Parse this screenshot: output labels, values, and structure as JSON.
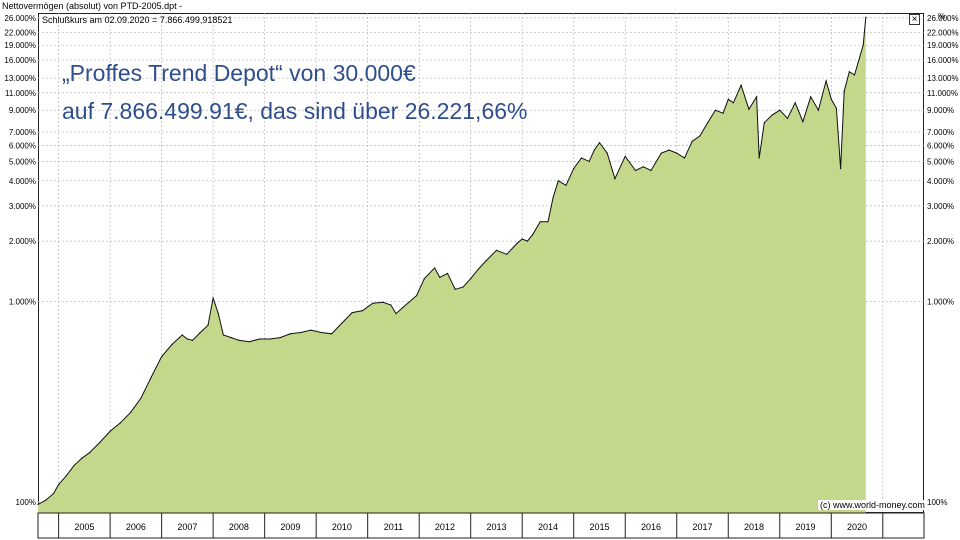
{
  "window_title": "Nettovermögen (absolut) von PTD-2005.dpt -",
  "legend_text": "Schlußkurs am 02.09.2020 = 7.866.499,918521",
  "percent_symbol": "%",
  "headline": {
    "line1": "„Proffes Trend Depot“ von 30.000€",
    "line2": "auf 7.866.499.91€, das sind über 26.221,66%"
  },
  "copyright": "(c) www.world-money.com",
  "colors": {
    "fill": "#c3d88a",
    "line": "#111111",
    "grid": "#b8b8b8",
    "headline": "#2e4e8e"
  },
  "chart_data": {
    "type": "area",
    "title": "",
    "xlabel": "",
    "ylabel": "%",
    "y_scale": "log",
    "ylim": [
      88,
      27500
    ],
    "xlim": [
      2004.6,
      2021.8
    ],
    "grid": true,
    "x_ticks": [
      "2005",
      "2006",
      "2007",
      "2008",
      "2009",
      "2010",
      "2011",
      "2012",
      "2013",
      "2014",
      "2015",
      "2016",
      "2017",
      "2018",
      "2019",
      "2020"
    ],
    "y_ticks": [
      {
        "value": 100,
        "label": "100%"
      },
      {
        "value": 1000,
        "label": "1.000%"
      },
      {
        "value": 2000,
        "label": "2.000%"
      },
      {
        "value": 3000,
        "label": "3.000%"
      },
      {
        "value": 4000,
        "label": "4.000%"
      },
      {
        "value": 5000,
        "label": "5.000%"
      },
      {
        "value": 6000,
        "label": "6.000%"
      },
      {
        "value": 7000,
        "label": "7.000%"
      },
      {
        "value": 9000,
        "label": "9.000%"
      },
      {
        "value": 11000,
        "label": "11.000%"
      },
      {
        "value": 13000,
        "label": "13.000%"
      },
      {
        "value": 16000,
        "label": "16.000%"
      },
      {
        "value": 19000,
        "label": "19.000%"
      },
      {
        "value": 22000,
        "label": "22.000%"
      },
      {
        "value": 26000,
        "label": "26.000%"
      }
    ],
    "series": [
      {
        "x": [
          2004.6,
          2004.75,
          2004.9,
          2005.0,
          2005.15,
          2005.3,
          2005.45,
          2005.6,
          2005.8,
          2006.0,
          2006.2,
          2006.4,
          2006.6,
          2006.8,
          2007.0,
          2007.2,
          2007.4,
          2007.5,
          2007.6,
          2007.75,
          2007.9,
          2008.0,
          2008.1,
          2008.2,
          2008.35,
          2008.5,
          2008.7,
          2008.9,
          2009.1,
          2009.3,
          2009.5,
          2009.7,
          2009.9,
          2010.1,
          2010.3,
          2010.5,
          2010.7,
          2010.9,
          2011.1,
          2011.3,
          2011.45,
          2011.55,
          2011.7,
          2011.8,
          2011.95,
          2012.1,
          2012.3,
          2012.4,
          2012.55,
          2012.7,
          2012.85,
          2013.0,
          2013.15,
          2013.3,
          2013.5,
          2013.7,
          2013.9,
          2014.0,
          2014.1,
          2014.2,
          2014.35,
          2014.5,
          2014.6,
          2014.7,
          2014.85,
          2015.0,
          2015.15,
          2015.3,
          2015.4,
          2015.5,
          2015.65,
          2015.8,
          2016.0,
          2016.2,
          2016.35,
          2016.5,
          2016.7,
          2016.85,
          2017.0,
          2017.15,
          2017.3,
          2017.45,
          2017.6,
          2017.75,
          2017.9,
          2018.0,
          2018.1,
          2018.25,
          2018.4,
          2018.55,
          2018.6,
          2018.7,
          2018.85,
          2019.0,
          2019.15,
          2019.3,
          2019.45,
          2019.6,
          2019.75,
          2019.9,
          2020.0,
          2020.1,
          2020.18,
          2020.25,
          2020.35,
          2020.45,
          2020.55,
          2020.62,
          2020.67
        ],
        "values": [
          97,
          102,
          110,
          122,
          135,
          152,
          165,
          176,
          198,
          225,
          248,
          280,
          330,
          420,
          530,
          610,
          680,
          650,
          640,
          700,
          760,
          1040,
          870,
          680,
          660,
          640,
          630,
          650,
          650,
          660,
          690,
          700,
          720,
          700,
          690,
          780,
          880,
          900,
          980,
          990,
          960,
          870,
          940,
          990,
          1070,
          1300,
          1470,
          1320,
          1380,
          1150,
          1180,
          1300,
          1450,
          1600,
          1800,
          1720,
          1950,
          2050,
          2000,
          2150,
          2500,
          2500,
          3300,
          4000,
          3800,
          4600,
          5200,
          5000,
          5700,
          6200,
          5500,
          4100,
          5300,
          4500,
          4700,
          4500,
          5500,
          5700,
          5500,
          5200,
          6300,
          6700,
          7800,
          9000,
          8700,
          10200,
          9800,
          12000,
          9100,
          10500,
          5200,
          7800,
          8500,
          9000,
          8200,
          9800,
          7900,
          10500,
          9000,
          12600,
          10200,
          9200,
          4600,
          11200,
          14000,
          13500,
          16500,
          19000,
          26200
        ]
      }
    ]
  }
}
